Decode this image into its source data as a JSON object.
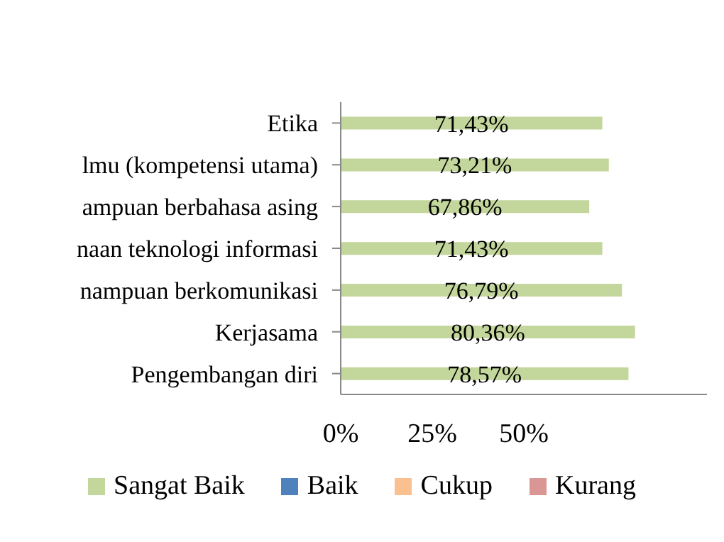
{
  "chart_data": {
    "type": "bar",
    "orientation": "horizontal",
    "stacked": true,
    "categories": [
      "Etika",
      "lmu (kompetensi utama)",
      "ampuan berbahasa asing",
      "naan teknologi informasi",
      "nampuan berkomunikasi",
      "Kerjasama",
      "Pengembangan diri"
    ],
    "series": [
      {
        "name": "Sangat Baik",
        "color": "#c3d69b",
        "values": [
          71.43,
          73.21,
          67.86,
          71.43,
          76.79,
          80.36,
          78.57
        ],
        "value_labels": [
          "71,43%",
          "73,21%",
          "67,86%",
          "71,43%",
          "76,79%",
          "80,36%",
          "78,57%"
        ]
      },
      {
        "name": "Baik",
        "color": "#4f81bd",
        "values": [
          null,
          null,
          null,
          null,
          null,
          null,
          null
        ]
      },
      {
        "name": "Cukup",
        "color": "#fac090",
        "values": [
          null,
          null,
          null,
          null,
          null,
          null,
          null
        ]
      },
      {
        "name": "Kurang",
        "color": "#d99694",
        "values": [
          null,
          null,
          null,
          null,
          null,
          null,
          null
        ]
      }
    ],
    "xlim": [
      0,
      100
    ],
    "xticks": [
      {
        "value": 0,
        "label": "0%"
      },
      {
        "value": 25,
        "label": "25%"
      },
      {
        "value": 50,
        "label": "50%"
      }
    ],
    "legend": "bottom",
    "grid": false
  }
}
